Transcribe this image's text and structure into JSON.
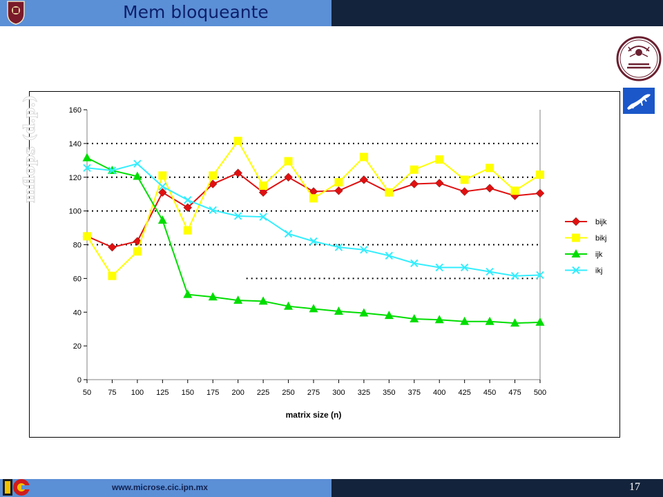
{
  "header": {
    "title": "Mem bloqueante"
  },
  "footer": {
    "url": "www.microse.cic.ipn.mx",
    "page_number": "17"
  },
  "logos": {
    "top_left": "ipn-shield-logo",
    "right_circle": "red-de-computacion-logo",
    "right_square": "lizard-logo",
    "bottom_left": "cic-logo"
  },
  "colors": {
    "header_left": "#5b8fd6",
    "header_right": "#13233b",
    "bijk": "#e01010",
    "bikj": "#ffff00",
    "ijk": "#00dd00",
    "ikj": "#33eeff"
  },
  "chart_data": {
    "type": "line",
    "xlabel": "matrix size (n)",
    "ylabel": "mflops (d.p.)",
    "ylim": [
      0,
      160
    ],
    "yticks": [
      0,
      20,
      40,
      60,
      80,
      100,
      120,
      140,
      160
    ],
    "categories": [
      "50",
      "75",
      "100",
      "125",
      "150",
      "175",
      "200",
      "225",
      "250",
      "275",
      "300",
      "325",
      "350",
      "375",
      "400",
      "425",
      "450",
      "475",
      "500"
    ],
    "grid": "dotted lines at 80, 100, 120, 140; partial at 60",
    "legend_position": "right",
    "series": [
      {
        "name": "bijk",
        "marker": "diamond",
        "color": "#e01010",
        "values": [
          85,
          78.5,
          82,
          111,
          102,
          116,
          122.5,
          111,
          120,
          111.5,
          112,
          118.5,
          111,
          116,
          116.5,
          111.5,
          113.5,
          109,
          110.5
        ]
      },
      {
        "name": "bikj",
        "marker": "square",
        "color": "#ffff00",
        "values": [
          85,
          61.5,
          76,
          121,
          88.5,
          121,
          141.5,
          115,
          129.5,
          107.5,
          117,
          132,
          111,
          124.5,
          130.5,
          118.5,
          125.5,
          112,
          121.5
        ]
      },
      {
        "name": "ijk",
        "marker": "triangle",
        "color": "#00dd00",
        "values": [
          131.5,
          124,
          120.5,
          94.5,
          50.5,
          49,
          47,
          46.5,
          43.5,
          42,
          40.5,
          39.5,
          38,
          36,
          35.5,
          34.5,
          34.5,
          33.5,
          34
        ]
      },
      {
        "name": "ikj",
        "marker": "x",
        "color": "#33eeff",
        "values": [
          125.5,
          124,
          128,
          114.5,
          106.5,
          100.5,
          97,
          96.5,
          86.5,
          82,
          78.5,
          77,
          73.5,
          69,
          66.5,
          66.5,
          64,
          61.5,
          62
        ]
      }
    ]
  }
}
